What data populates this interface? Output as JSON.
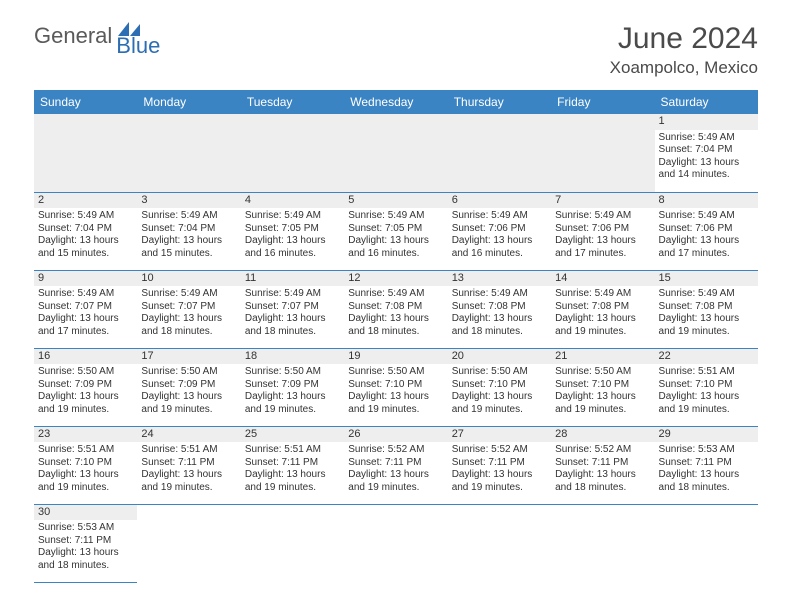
{
  "brand": {
    "part1": "General",
    "part2": "Blue"
  },
  "title": "June 2024",
  "location": "Xoampolco, Mexico",
  "colors": {
    "headerBg": "#3b84c4",
    "headerFg": "#ffffff",
    "brandBlue": "#2d6db3",
    "brandGray": "#5a5a5a",
    "gridLine": "#3b84c4",
    "shadeBg": "#eeeeee"
  },
  "dayNames": [
    "Sunday",
    "Monday",
    "Tuesday",
    "Wednesday",
    "Thursday",
    "Friday",
    "Saturday"
  ],
  "weeks": [
    [
      null,
      null,
      null,
      null,
      null,
      null,
      {
        "n": "1",
        "sr": "Sunrise: 5:49 AM",
        "ss": "Sunset: 7:04 PM",
        "d1": "Daylight: 13 hours",
        "d2": "and 14 minutes."
      }
    ],
    [
      {
        "n": "2",
        "sr": "Sunrise: 5:49 AM",
        "ss": "Sunset: 7:04 PM",
        "d1": "Daylight: 13 hours",
        "d2": "and 15 minutes."
      },
      {
        "n": "3",
        "sr": "Sunrise: 5:49 AM",
        "ss": "Sunset: 7:04 PM",
        "d1": "Daylight: 13 hours",
        "d2": "and 15 minutes."
      },
      {
        "n": "4",
        "sr": "Sunrise: 5:49 AM",
        "ss": "Sunset: 7:05 PM",
        "d1": "Daylight: 13 hours",
        "d2": "and 16 minutes."
      },
      {
        "n": "5",
        "sr": "Sunrise: 5:49 AM",
        "ss": "Sunset: 7:05 PM",
        "d1": "Daylight: 13 hours",
        "d2": "and 16 minutes."
      },
      {
        "n": "6",
        "sr": "Sunrise: 5:49 AM",
        "ss": "Sunset: 7:06 PM",
        "d1": "Daylight: 13 hours",
        "d2": "and 16 minutes."
      },
      {
        "n": "7",
        "sr": "Sunrise: 5:49 AM",
        "ss": "Sunset: 7:06 PM",
        "d1": "Daylight: 13 hours",
        "d2": "and 17 minutes."
      },
      {
        "n": "8",
        "sr": "Sunrise: 5:49 AM",
        "ss": "Sunset: 7:06 PM",
        "d1": "Daylight: 13 hours",
        "d2": "and 17 minutes."
      }
    ],
    [
      {
        "n": "9",
        "sr": "Sunrise: 5:49 AM",
        "ss": "Sunset: 7:07 PM",
        "d1": "Daylight: 13 hours",
        "d2": "and 17 minutes."
      },
      {
        "n": "10",
        "sr": "Sunrise: 5:49 AM",
        "ss": "Sunset: 7:07 PM",
        "d1": "Daylight: 13 hours",
        "d2": "and 18 minutes."
      },
      {
        "n": "11",
        "sr": "Sunrise: 5:49 AM",
        "ss": "Sunset: 7:07 PM",
        "d1": "Daylight: 13 hours",
        "d2": "and 18 minutes."
      },
      {
        "n": "12",
        "sr": "Sunrise: 5:49 AM",
        "ss": "Sunset: 7:08 PM",
        "d1": "Daylight: 13 hours",
        "d2": "and 18 minutes."
      },
      {
        "n": "13",
        "sr": "Sunrise: 5:49 AM",
        "ss": "Sunset: 7:08 PM",
        "d1": "Daylight: 13 hours",
        "d2": "and 18 minutes."
      },
      {
        "n": "14",
        "sr": "Sunrise: 5:49 AM",
        "ss": "Sunset: 7:08 PM",
        "d1": "Daylight: 13 hours",
        "d2": "and 19 minutes."
      },
      {
        "n": "15",
        "sr": "Sunrise: 5:49 AM",
        "ss": "Sunset: 7:08 PM",
        "d1": "Daylight: 13 hours",
        "d2": "and 19 minutes."
      }
    ],
    [
      {
        "n": "16",
        "sr": "Sunrise: 5:50 AM",
        "ss": "Sunset: 7:09 PM",
        "d1": "Daylight: 13 hours",
        "d2": "and 19 minutes."
      },
      {
        "n": "17",
        "sr": "Sunrise: 5:50 AM",
        "ss": "Sunset: 7:09 PM",
        "d1": "Daylight: 13 hours",
        "d2": "and 19 minutes."
      },
      {
        "n": "18",
        "sr": "Sunrise: 5:50 AM",
        "ss": "Sunset: 7:09 PM",
        "d1": "Daylight: 13 hours",
        "d2": "and 19 minutes."
      },
      {
        "n": "19",
        "sr": "Sunrise: 5:50 AM",
        "ss": "Sunset: 7:10 PM",
        "d1": "Daylight: 13 hours",
        "d2": "and 19 minutes."
      },
      {
        "n": "20",
        "sr": "Sunrise: 5:50 AM",
        "ss": "Sunset: 7:10 PM",
        "d1": "Daylight: 13 hours",
        "d2": "and 19 minutes."
      },
      {
        "n": "21",
        "sr": "Sunrise: 5:50 AM",
        "ss": "Sunset: 7:10 PM",
        "d1": "Daylight: 13 hours",
        "d2": "and 19 minutes."
      },
      {
        "n": "22",
        "sr": "Sunrise: 5:51 AM",
        "ss": "Sunset: 7:10 PM",
        "d1": "Daylight: 13 hours",
        "d2": "and 19 minutes."
      }
    ],
    [
      {
        "n": "23",
        "sr": "Sunrise: 5:51 AM",
        "ss": "Sunset: 7:10 PM",
        "d1": "Daylight: 13 hours",
        "d2": "and 19 minutes."
      },
      {
        "n": "24",
        "sr": "Sunrise: 5:51 AM",
        "ss": "Sunset: 7:11 PM",
        "d1": "Daylight: 13 hours",
        "d2": "and 19 minutes."
      },
      {
        "n": "25",
        "sr": "Sunrise: 5:51 AM",
        "ss": "Sunset: 7:11 PM",
        "d1": "Daylight: 13 hours",
        "d2": "and 19 minutes."
      },
      {
        "n": "26",
        "sr": "Sunrise: 5:52 AM",
        "ss": "Sunset: 7:11 PM",
        "d1": "Daylight: 13 hours",
        "d2": "and 19 minutes."
      },
      {
        "n": "27",
        "sr": "Sunrise: 5:52 AM",
        "ss": "Sunset: 7:11 PM",
        "d1": "Daylight: 13 hours",
        "d2": "and 19 minutes."
      },
      {
        "n": "28",
        "sr": "Sunrise: 5:52 AM",
        "ss": "Sunset: 7:11 PM",
        "d1": "Daylight: 13 hours",
        "d2": "and 18 minutes."
      },
      {
        "n": "29",
        "sr": "Sunrise: 5:53 AM",
        "ss": "Sunset: 7:11 PM",
        "d1": "Daylight: 13 hours",
        "d2": "and 18 minutes."
      }
    ],
    [
      {
        "n": "30",
        "sr": "Sunrise: 5:53 AM",
        "ss": "Sunset: 7:11 PM",
        "d1": "Daylight: 13 hours",
        "d2": "and 18 minutes."
      },
      null,
      null,
      null,
      null,
      null,
      null
    ]
  ]
}
